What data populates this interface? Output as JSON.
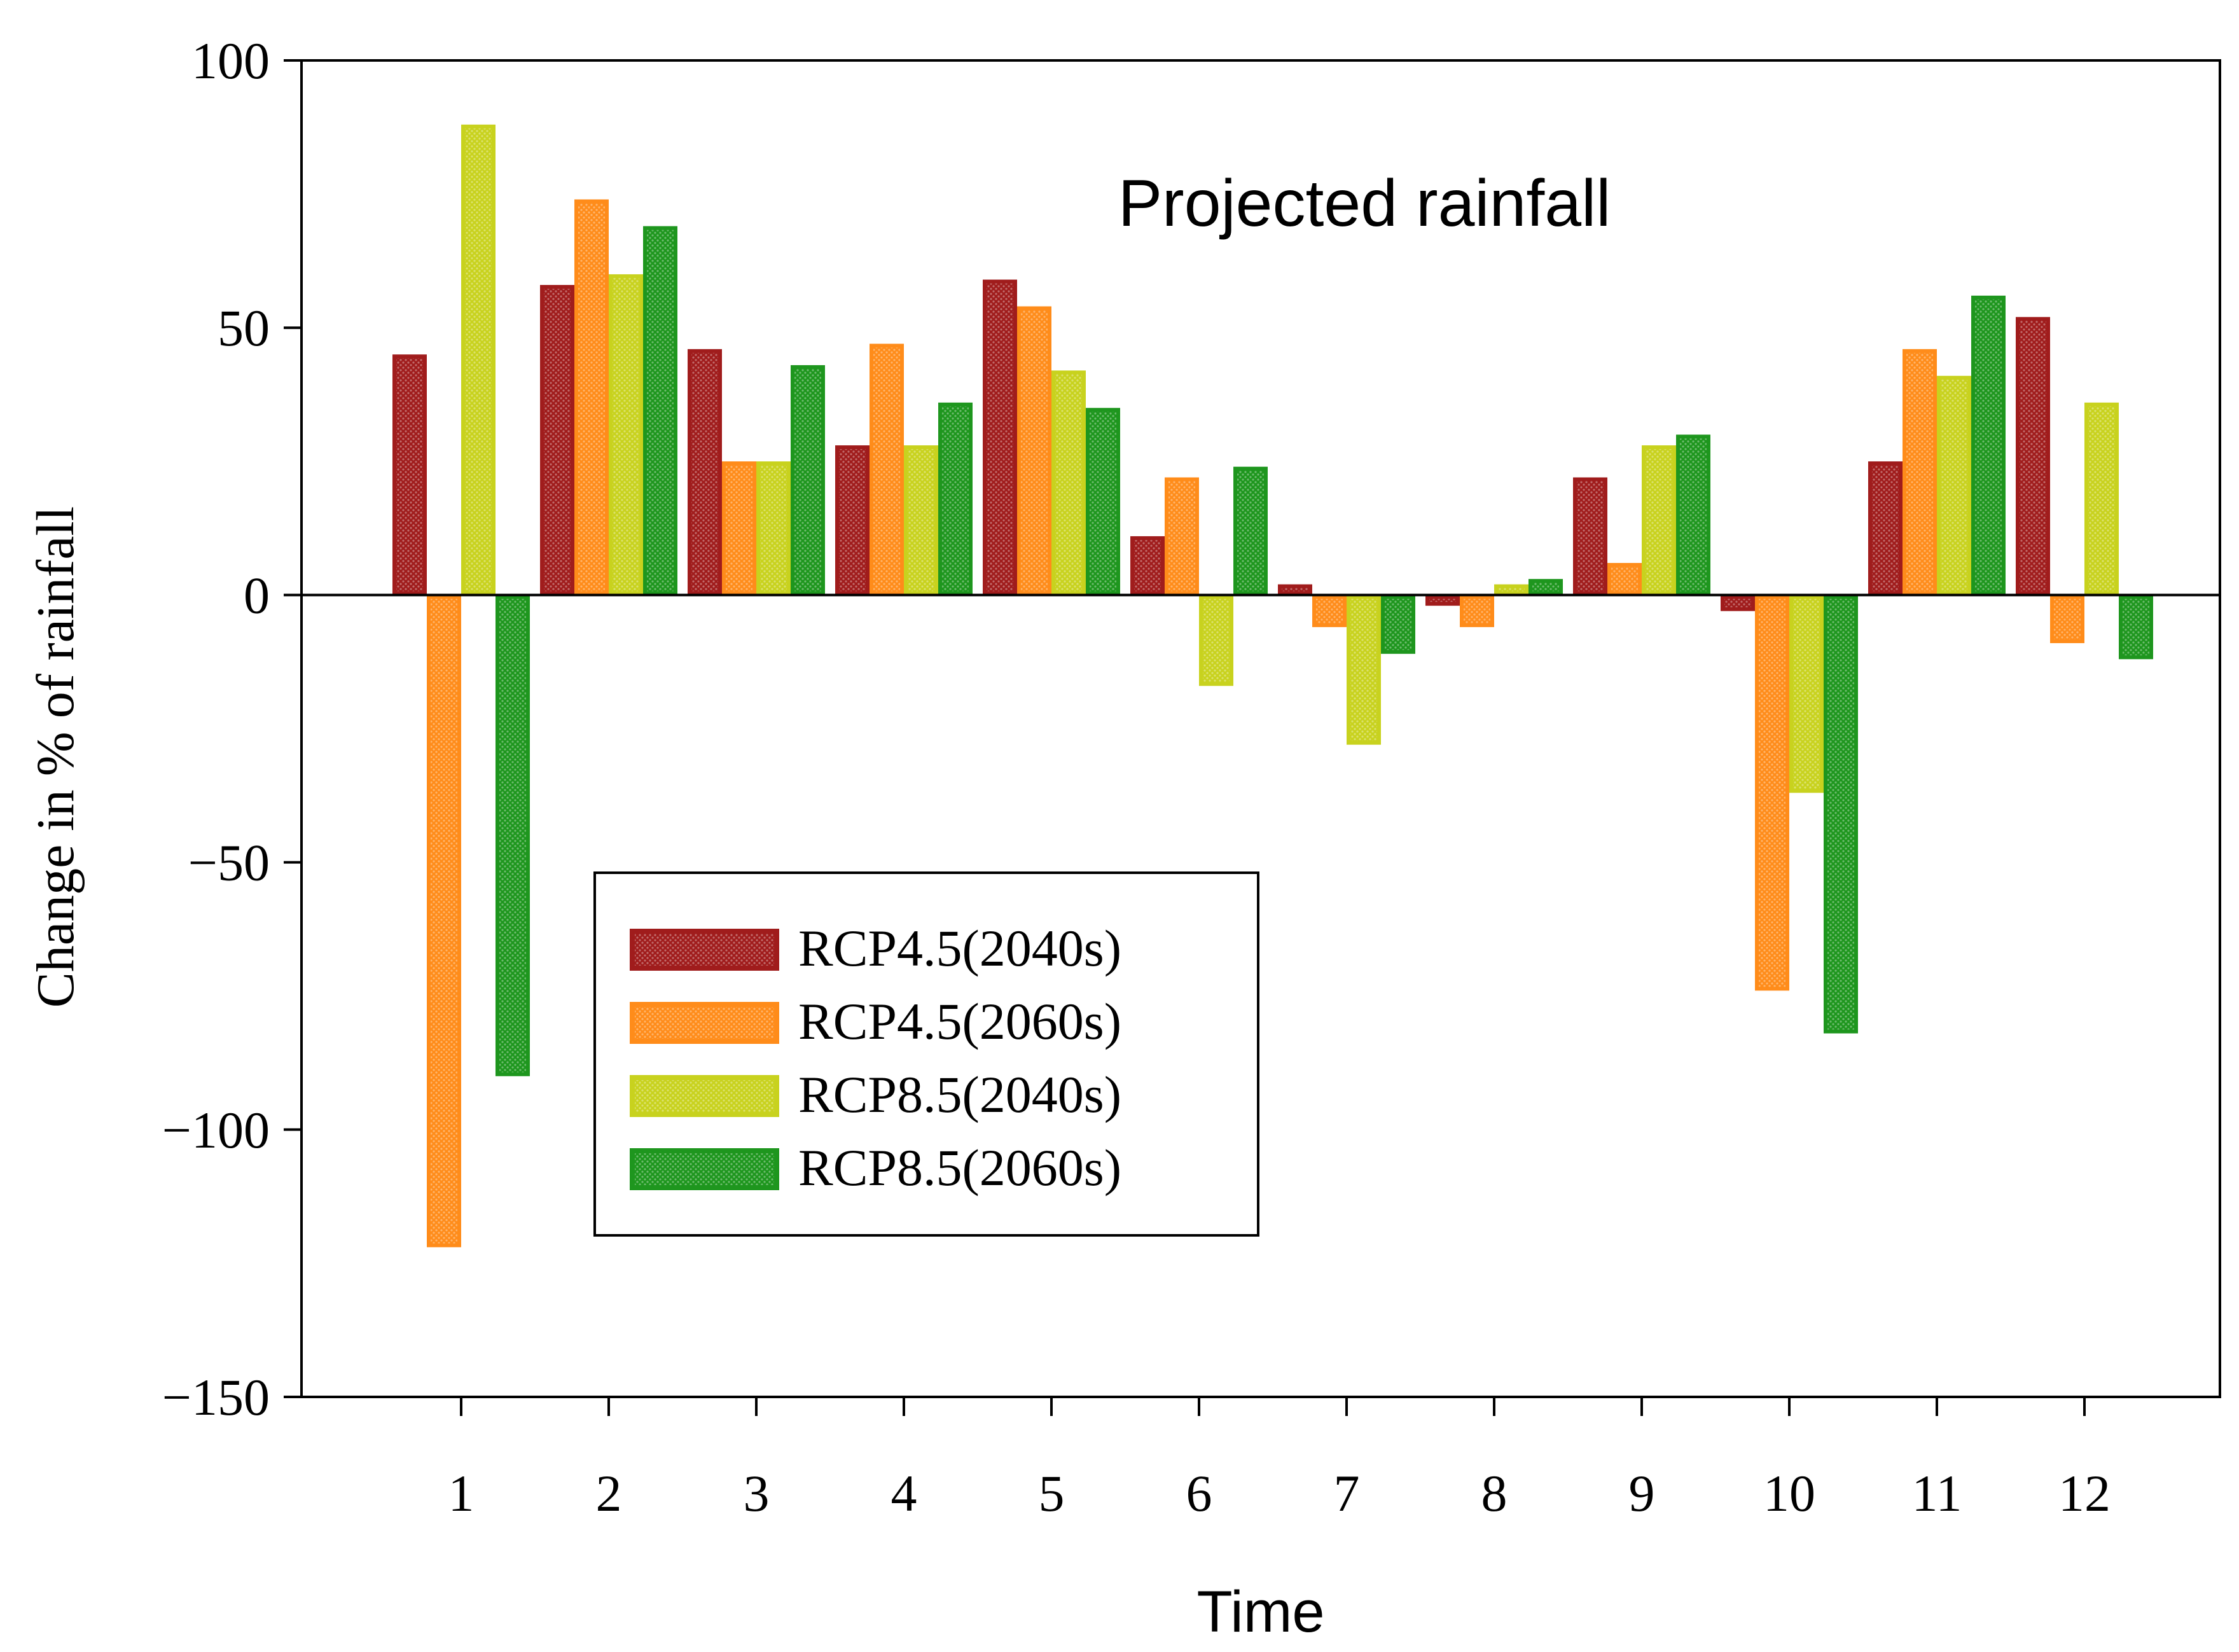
{
  "chart_data": {
    "type": "bar",
    "title": "Projected rainfall",
    "xlabel": "Time",
    "ylabel": "Change in % of rainfall",
    "categories": [
      "1",
      "2",
      "3",
      "4",
      "5",
      "6",
      "7",
      "8",
      "9",
      "10",
      "11",
      "12"
    ],
    "ylim": [
      -150,
      100
    ],
    "yticks": [
      100,
      50,
      0,
      -50,
      -100,
      -150
    ],
    "ytick_labels": [
      "100",
      "50",
      "0",
      "−50",
      "−100",
      "−150"
    ],
    "legend_position": "lower-left",
    "grid": false,
    "series": [
      {
        "name": "RCP4.5(2040s)",
        "color": "#a01c1c",
        "values": [
          45,
          58,
          46,
          28,
          59,
          11,
          2,
          -2,
          22,
          -3,
          25,
          52
        ]
      },
      {
        "name": "RCP4.5(2060s)",
        "color": "#ff8c1a",
        "values": [
          -122,
          74,
          25,
          47,
          54,
          22,
          -6,
          -6,
          6,
          -74,
          46,
          -9
        ]
      },
      {
        "name": "RCP8.5(2040s)",
        "color": "#c8d21e",
        "values": [
          88,
          60,
          25,
          28,
          42,
          -17,
          -28,
          2,
          28,
          -37,
          41,
          36
        ]
      },
      {
        "name": "RCP8.5(2060s)",
        "color": "#1e961e",
        "values": [
          -90,
          69,
          43,
          36,
          35,
          24,
          -11,
          3,
          30,
          -82,
          56,
          -12
        ]
      }
    ]
  }
}
